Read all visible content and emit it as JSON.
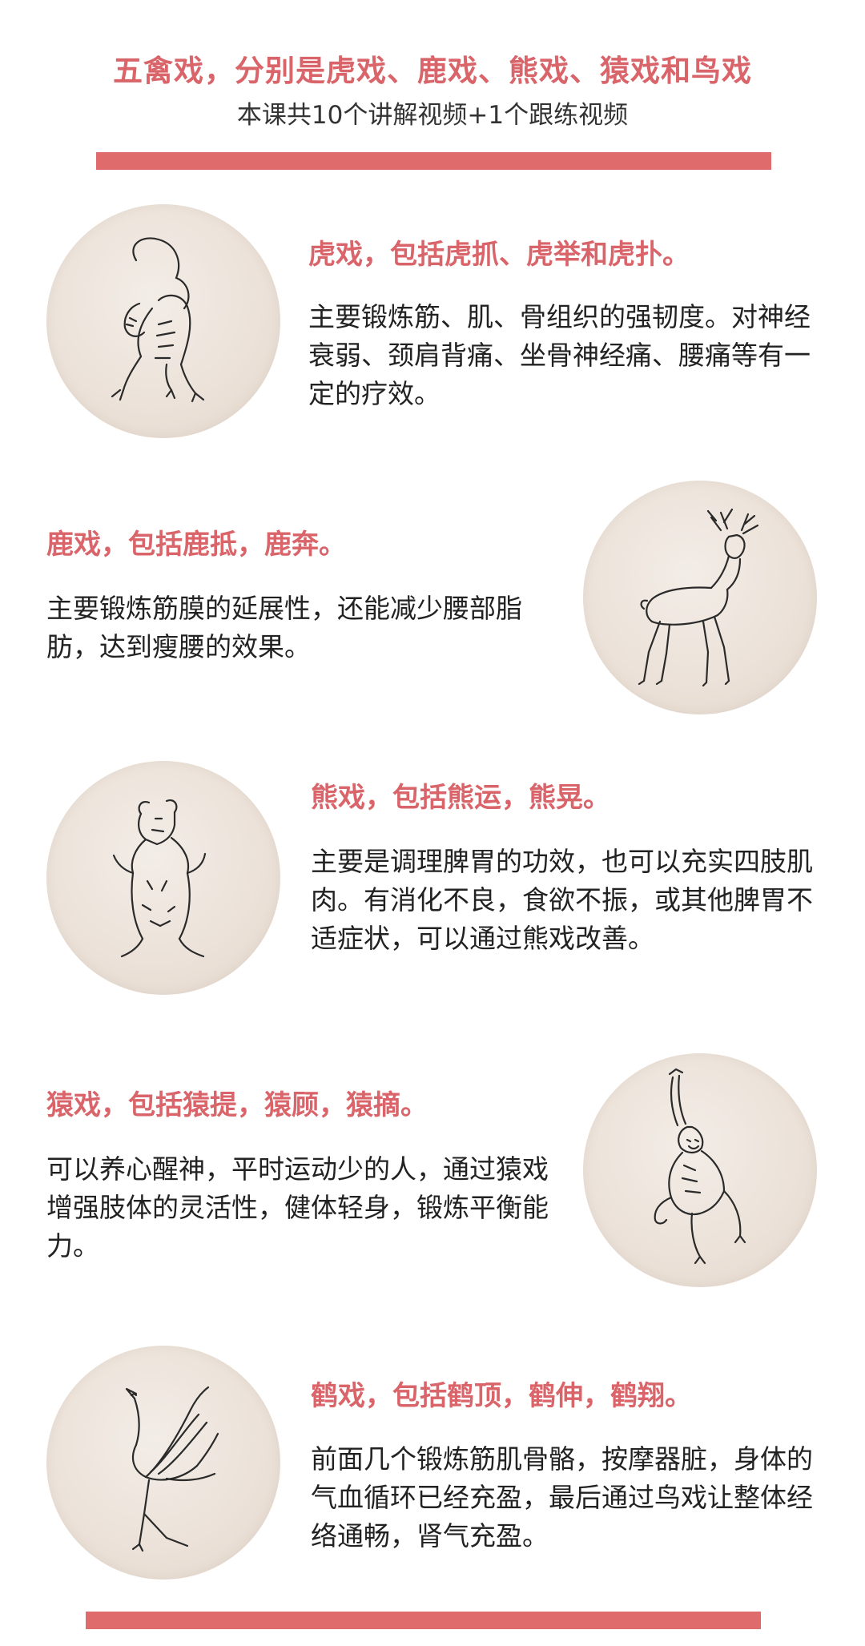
{
  "header": {
    "title": "五禽戏，分别是虎戏、鹿戏、熊戏、猿戏和鸟戏",
    "subtitle": "本课共10个讲解视频+1个跟练视频"
  },
  "colors": {
    "accent": "#d9646a",
    "bar": "#e06b6c",
    "text": "#222222",
    "circle_bg": "#ebe1d8"
  },
  "sections": [
    {
      "animal": "tiger-icon",
      "title": "虎戏，包括虎抓、虎举和虎扑。",
      "desc": "主要锻炼筋、肌、骨组织的强韧度。对神经衰弱、颈肩背痛、坐骨神经痛、腰痛等有一定的疗效。"
    },
    {
      "animal": "deer-icon",
      "title": "鹿戏，包括鹿抵，鹿奔。",
      "desc": "主要锻炼筋膜的延展性，还能减少腰部脂肪，达到瘦腰的效果。"
    },
    {
      "animal": "bear-icon",
      "title": "熊戏，包括熊运，熊晃。",
      "desc": "主要是调理脾胃的功效，也可以充实四肢肌肉。有消化不良，食欲不振，或其他脾胃不适症状，可以通过熊戏改善。"
    },
    {
      "animal": "monkey-icon",
      "title": "猿戏，包括猿提，猿顾，猿摘。",
      "desc": "可以养心醒神，平时运动少的人，通过猿戏增强肢体的灵活性，健体轻身，锻炼平衡能力。"
    },
    {
      "animal": "crane-icon",
      "title": "鹤戏，包括鹤顶，鹤伸，鹤翔。",
      "desc": "前面几个锻炼筋肌骨骼，按摩器脏，身体的气血循环已经充盈，最后通过鸟戏让整体经络通畅，肾气充盈。"
    }
  ]
}
